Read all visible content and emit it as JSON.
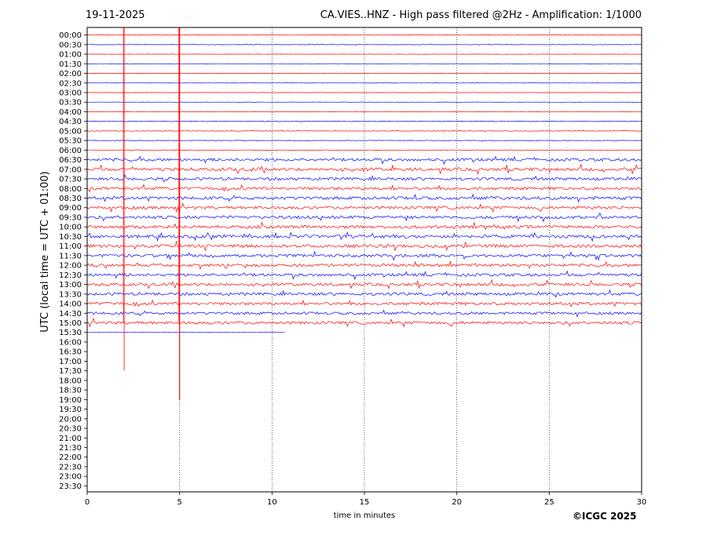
{
  "header": {
    "date": "19-11-2025",
    "title": "CA.VIES..HNZ - High pass filtered @2Hz - Amplification: 1/1000"
  },
  "footer": {
    "credit": "©ICGC 2025"
  },
  "chart_data": {
    "type": "seismogram",
    "xlabel": "time in minutes",
    "ylabel": "UTC (local time = UTC + 01:00)",
    "xlim": [
      0,
      30
    ],
    "x_ticks": [
      0,
      5,
      10,
      15,
      20,
      25,
      30
    ],
    "y_tick_labels": [
      "00:00",
      "00:30",
      "01:00",
      "01:30",
      "02:00",
      "02:30",
      "03:00",
      "03:30",
      "04:00",
      "04:30",
      "05:00",
      "05:30",
      "06:00",
      "06:30",
      "07:00",
      "07:30",
      "08:00",
      "08:30",
      "09:00",
      "09:30",
      "10:00",
      "10:30",
      "11:00",
      "11:30",
      "12:00",
      "12:30",
      "13:00",
      "13:30",
      "14:00",
      "14:30",
      "15:00",
      "15:30",
      "16:00",
      "16:30",
      "17:00",
      "17:30",
      "18:00",
      "18:30",
      "19:00",
      "19:30",
      "20:00",
      "20:30",
      "21:00",
      "21:30",
      "22:00",
      "22:30",
      "23:00",
      "23:30"
    ],
    "trace_colors": [
      "#ff0000",
      "#0000ff"
    ],
    "recorded_until": "15:30 + 10.7 min",
    "trace_activity": [
      0.05,
      0.08,
      0.05,
      0.05,
      0.05,
      0.05,
      0.05,
      0.05,
      0.07,
      0.12,
      0.12,
      0.1,
      0.1,
      0.55,
      0.6,
      0.55,
      0.55,
      0.6,
      0.55,
      0.55,
      0.6,
      0.6,
      0.6,
      0.55,
      0.55,
      0.55,
      0.55,
      0.55,
      0.55,
      0.5,
      0.55,
      0.05
    ],
    "vertical_spikes": [
      {
        "x": 2.0,
        "from": "00:00",
        "to": "17:30"
      },
      {
        "x": 5.0,
        "from": "00:00",
        "to": "19:00"
      }
    ],
    "grid": "vertical dotted lines at major x ticks"
  }
}
